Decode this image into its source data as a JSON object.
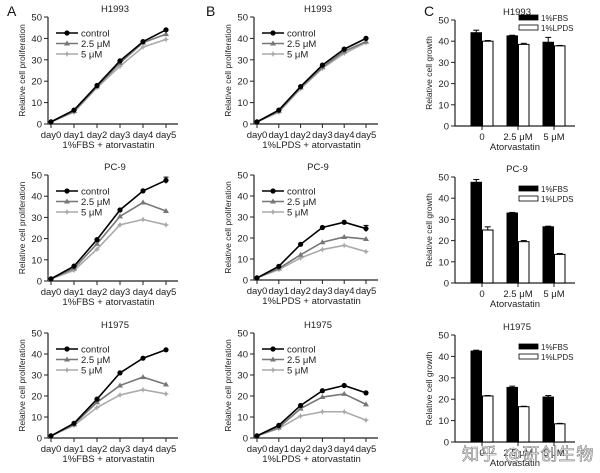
{
  "panel_letters": [
    "A",
    "B",
    "C"
  ],
  "watermark": "知乎 @研创生物",
  "chart_data": [
    {
      "id": "A-H1993",
      "panel": "A",
      "type": "line",
      "title": "H1993",
      "xlabel": "1%FBS + atorvastatin",
      "ylabel": "Relative cell proliferation",
      "x": [
        "day0",
        "day1",
        "day2",
        "day3",
        "day4",
        "day5"
      ],
      "ylim": [
        0,
        50
      ],
      "yticks": [
        0,
        10,
        20,
        30,
        40,
        50
      ],
      "legend": "top-left",
      "series": [
        {
          "name": "control",
          "marker": "circle",
          "color": "#000000",
          "values": [
            1,
            6.5,
            18,
            29.5,
            38.5,
            44
          ]
        },
        {
          "name": "2.5 μM",
          "marker": "triangle",
          "color": "#777777",
          "values": [
            1,
            6,
            17.5,
            28.5,
            38,
            42
          ]
        },
        {
          "name": "5 μM",
          "marker": "star",
          "color": "#aaaaaa",
          "values": [
            1,
            5.5,
            17,
            27,
            36,
            39.5
          ]
        }
      ]
    },
    {
      "id": "B-H1993",
      "panel": "B",
      "type": "line",
      "title": "H1993",
      "xlabel": "1%LPDS + atorvastatin",
      "ylabel": "Relative cell proliferation",
      "x": [
        "day0",
        "day1",
        "day2",
        "day3",
        "day4",
        "day5"
      ],
      "ylim": [
        0,
        50
      ],
      "yticks": [
        0,
        10,
        20,
        30,
        40,
        50
      ],
      "legend": "top-left",
      "series": [
        {
          "name": "control",
          "marker": "circle",
          "color": "#000000",
          "values": [
            1,
            6.5,
            17.5,
            27.5,
            35,
            40
          ]
        },
        {
          "name": "2.5 μM",
          "marker": "triangle",
          "color": "#777777",
          "values": [
            1,
            6,
            17,
            26.5,
            34,
            38.5
          ]
        },
        {
          "name": "5 μM",
          "marker": "star",
          "color": "#aaaaaa",
          "values": [
            1,
            5.5,
            16.5,
            26,
            33,
            38
          ]
        }
      ]
    },
    {
      "id": "C-H1993",
      "panel": "C",
      "type": "bar",
      "title": "H1993",
      "xlabel": "Atorvastatin",
      "ylabel": "Relative cell growth",
      "categories": [
        "0",
        "2.5 μM",
        "5 μM"
      ],
      "ylim": [
        0,
        50
      ],
      "yticks": [
        0,
        10,
        20,
        30,
        40,
        50
      ],
      "legend": "top-right",
      "series": [
        {
          "name": "1%FBS",
          "fill": "#000000",
          "values": [
            44,
            42.5,
            39.5
          ],
          "errors": [
            1.2,
            0.3,
            2.3
          ]
        },
        {
          "name": "1%LPDS",
          "fill": "#ffffff",
          "values": [
            40,
            38.5,
            37.8
          ],
          "errors": [
            0.3,
            0.5,
            0.2
          ]
        }
      ]
    },
    {
      "id": "A-PC9",
      "panel": "A",
      "type": "line",
      "title": "PC-9",
      "xlabel": "1%FBS + atorvastatin",
      "ylabel": "Relative cell proliferation",
      "x": [
        "day0",
        "day1",
        "day2",
        "day3",
        "day4",
        "day5"
      ],
      "ylim": [
        0,
        50
      ],
      "yticks": [
        0,
        10,
        20,
        30,
        40,
        50
      ],
      "legend": "top-left",
      "series": [
        {
          "name": "control",
          "marker": "circle",
          "color": "#000000",
          "values": [
            1,
            7,
            19.5,
            33.5,
            42.5,
            47.5
          ],
          "errors": [
            0,
            0,
            0,
            0,
            0,
            1.5
          ]
        },
        {
          "name": "2.5 μM",
          "marker": "triangle",
          "color": "#777777",
          "values": [
            1,
            6,
            17.5,
            30.5,
            37,
            33
          ]
        },
        {
          "name": "5 μM",
          "marker": "star",
          "color": "#aaaaaa",
          "values": [
            1,
            5,
            15,
            26.5,
            29,
            26.5
          ]
        }
      ]
    },
    {
      "id": "B-PC9",
      "panel": "B",
      "type": "line",
      "title": "PC-9",
      "xlabel": "1%LPDS + atorvastatin",
      "ylabel": "Relative cell proliferation",
      "x": [
        "day0",
        "day1",
        "day2",
        "day3",
        "day4",
        "day5"
      ],
      "ylim": [
        0,
        50
      ],
      "yticks": [
        0,
        10,
        20,
        30,
        40,
        50
      ],
      "legend": "top-left",
      "series": [
        {
          "name": "control",
          "marker": "circle",
          "color": "#000000",
          "values": [
            1,
            6.5,
            17,
            25,
            27.5,
            24.5
          ],
          "errors": [
            0,
            0,
            0,
            0,
            0,
            1.5
          ]
        },
        {
          "name": "2.5 μM",
          "marker": "triangle",
          "color": "#777777",
          "values": [
            1,
            5.5,
            12,
            18,
            20.5,
            19.5
          ]
        },
        {
          "name": "5 μM",
          "marker": "star",
          "color": "#aaaaaa",
          "values": [
            1,
            5,
            10.5,
            14.5,
            16.5,
            13.5
          ]
        }
      ]
    },
    {
      "id": "C-PC9",
      "panel": "C",
      "type": "bar",
      "title": "PC-9",
      "xlabel": "Atorvastatin",
      "ylabel": "Relative cell growth",
      "categories": [
        "0",
        "2.5 μM",
        "5 μM"
      ],
      "ylim": [
        0,
        50
      ],
      "yticks": [
        0,
        10,
        20,
        30,
        40,
        50
      ],
      "legend": "top-right",
      "series": [
        {
          "name": "1%FBS",
          "fill": "#000000",
          "values": [
            47.5,
            33,
            26.5
          ],
          "errors": [
            1.3,
            0.3,
            0.3
          ]
        },
        {
          "name": "1%LPDS",
          "fill": "#ffffff",
          "values": [
            25,
            19.5,
            13.5
          ],
          "errors": [
            1.5,
            0.5,
            0.4
          ]
        }
      ]
    },
    {
      "id": "A-H1975",
      "panel": "A",
      "type": "line",
      "title": "H1975",
      "xlabel": "1%FBS + atorvastatin",
      "ylabel": "Relative cell proliferation",
      "x": [
        "day0",
        "day1",
        "day2",
        "day3",
        "day4",
        "day5"
      ],
      "ylim": [
        0,
        50
      ],
      "yticks": [
        0,
        10,
        20,
        30,
        40,
        50
      ],
      "legend": "top-left",
      "series": [
        {
          "name": "control",
          "marker": "circle",
          "color": "#000000",
          "values": [
            1,
            7,
            18.5,
            31,
            38,
            42
          ]
        },
        {
          "name": "2.5 μM",
          "marker": "triangle",
          "color": "#777777",
          "values": [
            1,
            6.5,
            17,
            25,
            29,
            25.5
          ]
        },
        {
          "name": "5 μM",
          "marker": "star",
          "color": "#aaaaaa",
          "values": [
            1,
            6,
            14.5,
            20.5,
            23,
            21
          ]
        }
      ]
    },
    {
      "id": "B-H1975",
      "panel": "B",
      "type": "line",
      "title": "H1975",
      "xlabel": "1%LPDS + atorvastatin",
      "ylabel": "Relative cell proliferation",
      "x": [
        "day0",
        "day1",
        "day2",
        "day3",
        "day4",
        "day5"
      ],
      "ylim": [
        0,
        50
      ],
      "yticks": [
        0,
        10,
        20,
        30,
        40,
        50
      ],
      "legend": "top-left",
      "series": [
        {
          "name": "control",
          "marker": "circle",
          "color": "#000000",
          "values": [
            1,
            6,
            15.5,
            22.5,
            25,
            21.5
          ]
        },
        {
          "name": "2.5 μM",
          "marker": "triangle",
          "color": "#777777",
          "values": [
            1,
            5,
            14,
            19.5,
            21,
            16
          ]
        },
        {
          "name": "5 μM",
          "marker": "star",
          "color": "#aaaaaa",
          "values": [
            1,
            4.5,
            10.5,
            12.5,
            12.5,
            8.5
          ]
        }
      ]
    },
    {
      "id": "C-H1975",
      "panel": "C",
      "type": "bar",
      "title": "H1975",
      "xlabel": "Atorvastatin",
      "ylabel": "Relative cell growth",
      "categories": [
        "0",
        "2.5 μM",
        "5 μM"
      ],
      "ylim": [
        0,
        50
      ],
      "yticks": [
        0,
        10,
        20,
        30,
        40,
        50
      ],
      "legend": "top-right",
      "series": [
        {
          "name": "1%FBS",
          "fill": "#000000",
          "values": [
            42.5,
            25.5,
            21
          ],
          "errors": [
            0.4,
            0.6,
            0.7
          ]
        },
        {
          "name": "1%LPDS",
          "fill": "#ffffff",
          "values": [
            21.5,
            16.5,
            8.5
          ],
          "errors": [
            0.2,
            0.2,
            0.2
          ]
        }
      ]
    }
  ]
}
